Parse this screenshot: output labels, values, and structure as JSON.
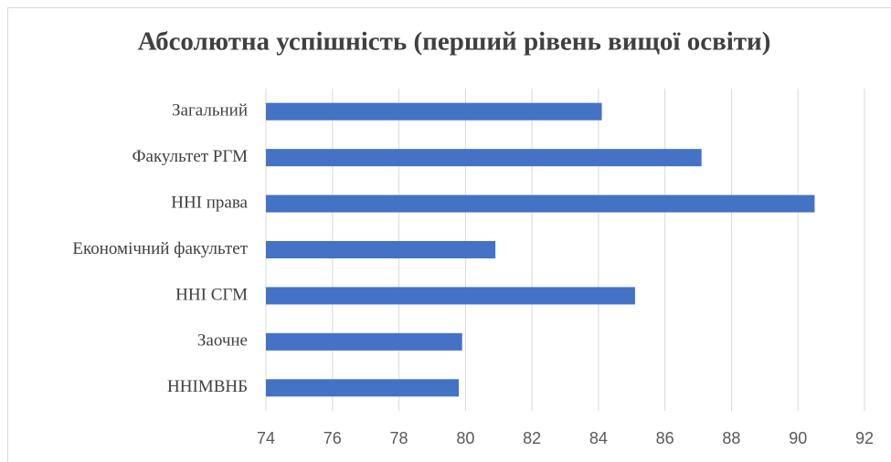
{
  "chart_data": {
    "type": "bar",
    "orientation": "horizontal",
    "title": "Абсолютна успішність (перший рівень вищої освіти)",
    "categories": [
      "Загальний",
      "Факультет РГМ",
      "ННІ права",
      "Економічний факультет",
      "ННІ СГМ",
      "Заочне",
      "ННІМВНБ"
    ],
    "values": [
      84.1,
      87.1,
      90.5,
      80.9,
      85.1,
      79.9,
      79.8
    ],
    "color": "#4472c4",
    "xlim": [
      74,
      92
    ],
    "xticks": [
      74,
      76,
      78,
      80,
      82,
      84,
      86,
      88,
      90,
      92
    ],
    "grid": true
  }
}
